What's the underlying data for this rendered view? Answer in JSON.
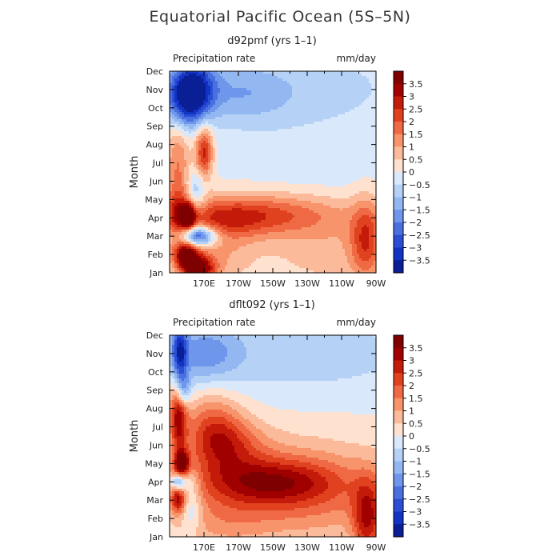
{
  "figure": {
    "title": "Equatorial Pacific Ocean (5S–5N)"
  },
  "chart_data": [
    {
      "type": "heatmap",
      "subtitle": "d92pmf (yrs 1–1)",
      "variable": "Precipitation rate",
      "units": "mm/day",
      "ylabel": "Month",
      "xlabel": "",
      "x_ticks": [
        "170E",
        "170W",
        "150W",
        "130W",
        "110W",
        "90W"
      ],
      "y_ticks": [
        "Jan",
        "Feb",
        "Mar",
        "Apr",
        "May",
        "Jun",
        "Jul",
        "Aug",
        "Sep",
        "Oct",
        "Nov",
        "Dec"
      ],
      "xlim": [
        150,
        270
      ],
      "ylim": [
        0,
        11
      ],
      "blobs": [
        {
          "x": 163,
          "y": 10.2,
          "sx": 9,
          "sy": 1.0,
          "v": -3.0
        },
        {
          "x": 160,
          "y": 9.2,
          "sx": 8,
          "sy": 1.0,
          "v": -2.4
        },
        {
          "x": 190,
          "y": 9.8,
          "sx": 22,
          "sy": 1.2,
          "v": -1.2
        },
        {
          "x": 240,
          "y": 10.2,
          "sx": 40,
          "sy": 1.6,
          "v": -0.6
        },
        {
          "x": 170,
          "y": 6.6,
          "sx": 3.5,
          "sy": 1.0,
          "v": 2.8
        },
        {
          "x": 155,
          "y": 6.0,
          "sx": 5,
          "sy": 1.8,
          "v": 1.5
        },
        {
          "x": 165,
          "y": 4.3,
          "sx": 4,
          "sy": 0.9,
          "v": -1.3
        },
        {
          "x": 161,
          "y": 3.1,
          "sx": 3,
          "sy": 0.5,
          "v": 3.4
        },
        {
          "x": 155,
          "y": 3.0,
          "sx": 5,
          "sy": 1.2,
          "v": 1.6
        },
        {
          "x": 200,
          "y": 3.2,
          "sx": 35,
          "sy": 0.8,
          "v": 2.0
        },
        {
          "x": 180,
          "y": 2.8,
          "sx": 20,
          "sy": 0.8,
          "v": 1.0
        },
        {
          "x": 166,
          "y": 2.0,
          "sx": 8,
          "sy": 0.4,
          "v": -4.0
        },
        {
          "x": 160,
          "y": 0.9,
          "sx": 5,
          "sy": 0.6,
          "v": 3.6
        },
        {
          "x": 168,
          "y": 0.2,
          "sx": 6,
          "sy": 0.5,
          "v": 3.0
        },
        {
          "x": 175,
          "y": 1.0,
          "sx": 15,
          "sy": 1.2,
          "v": 1.0
        },
        {
          "x": 264,
          "y": 1.8,
          "sx": 6,
          "sy": 1.5,
          "v": 2.0
        },
        {
          "x": 245,
          "y": 1.5,
          "sx": 30,
          "sy": 1.6,
          "v": 0.8
        },
        {
          "x": 235,
          "y": 6.0,
          "sx": 40,
          "sy": 2.0,
          "v": -0.3
        }
      ]
    },
    {
      "type": "heatmap",
      "subtitle": "dflt092 (yrs 1–1)",
      "variable": "Precipitation rate",
      "units": "mm/day",
      "ylabel": "Month",
      "xlabel": "",
      "x_ticks": [
        "170E",
        "170W",
        "150W",
        "130W",
        "110W",
        "90W"
      ],
      "y_ticks": [
        "Jan",
        "Feb",
        "Mar",
        "Apr",
        "May",
        "Jun",
        "Jul",
        "Aug",
        "Sep",
        "Oct",
        "Nov",
        "Dec"
      ],
      "xlim": [
        150,
        270
      ],
      "ylim": [
        0,
        11
      ],
      "blobs": [
        {
          "x": 156,
          "y": 10.0,
          "sx": 3,
          "sy": 1.2,
          "v": -2.8
        },
        {
          "x": 170,
          "y": 10.0,
          "sx": 15,
          "sy": 1.2,
          "v": -1.5
        },
        {
          "x": 230,
          "y": 10.0,
          "sx": 50,
          "sy": 1.6,
          "v": -0.8
        },
        {
          "x": 155,
          "y": 6.6,
          "sx": 3.5,
          "sy": 1.4,
          "v": 3.0
        },
        {
          "x": 158,
          "y": 8.0,
          "sx": 3,
          "sy": 0.6,
          "v": -1.8
        },
        {
          "x": 175,
          "y": 6.0,
          "sx": 12,
          "sy": 1.4,
          "v": 1.8
        },
        {
          "x": 185,
          "y": 5.0,
          "sx": 15,
          "sy": 1.0,
          "v": 1.5
        },
        {
          "x": 157,
          "y": 4.0,
          "sx": 3,
          "sy": 0.5,
          "v": 3.5
        },
        {
          "x": 155,
          "y": 3.0,
          "sx": 3,
          "sy": 0.3,
          "v": -2.5
        },
        {
          "x": 162,
          "y": 3.0,
          "sx": 4,
          "sy": 0.5,
          "v": -1.0
        },
        {
          "x": 205,
          "y": 3.0,
          "sx": 30,
          "sy": 0.9,
          "v": 2.3
        },
        {
          "x": 220,
          "y": 3.5,
          "sx": 40,
          "sy": 1.6,
          "v": 1.0
        },
        {
          "x": 155,
          "y": 2.0,
          "sx": 3,
          "sy": 0.5,
          "v": 2.5
        },
        {
          "x": 163,
          "y": 1.5,
          "sx": 4,
          "sy": 0.8,
          "v": -1.2
        },
        {
          "x": 265,
          "y": 1.0,
          "sx": 6,
          "sy": 1.5,
          "v": 2.5
        },
        {
          "x": 230,
          "y": 1.5,
          "sx": 40,
          "sy": 1.5,
          "v": 1.0
        },
        {
          "x": 180,
          "y": 0.8,
          "sx": 20,
          "sy": 1.0,
          "v": 0.8
        }
      ]
    }
  ],
  "colorbar": {
    "labels": [
      "3.5",
      "3",
      "2.5",
      "2",
      "1.5",
      "1",
      "0.5",
      "0",
      "−0.5",
      "−1",
      "−1.5",
      "−2",
      "−2.5",
      "−3",
      "−3.5"
    ],
    "colors": [
      "#7f0000",
      "#a10000",
      "#c41a0a",
      "#e0411f",
      "#ef6a44",
      "#f7946b",
      "#fbbb9b",
      "#fee2cf",
      "#d9e8fb",
      "#b6d1f6",
      "#93b7f1",
      "#6e96ea",
      "#4a70e0",
      "#2a4fd5",
      "#1233c4",
      "#0a1e96"
    ]
  }
}
